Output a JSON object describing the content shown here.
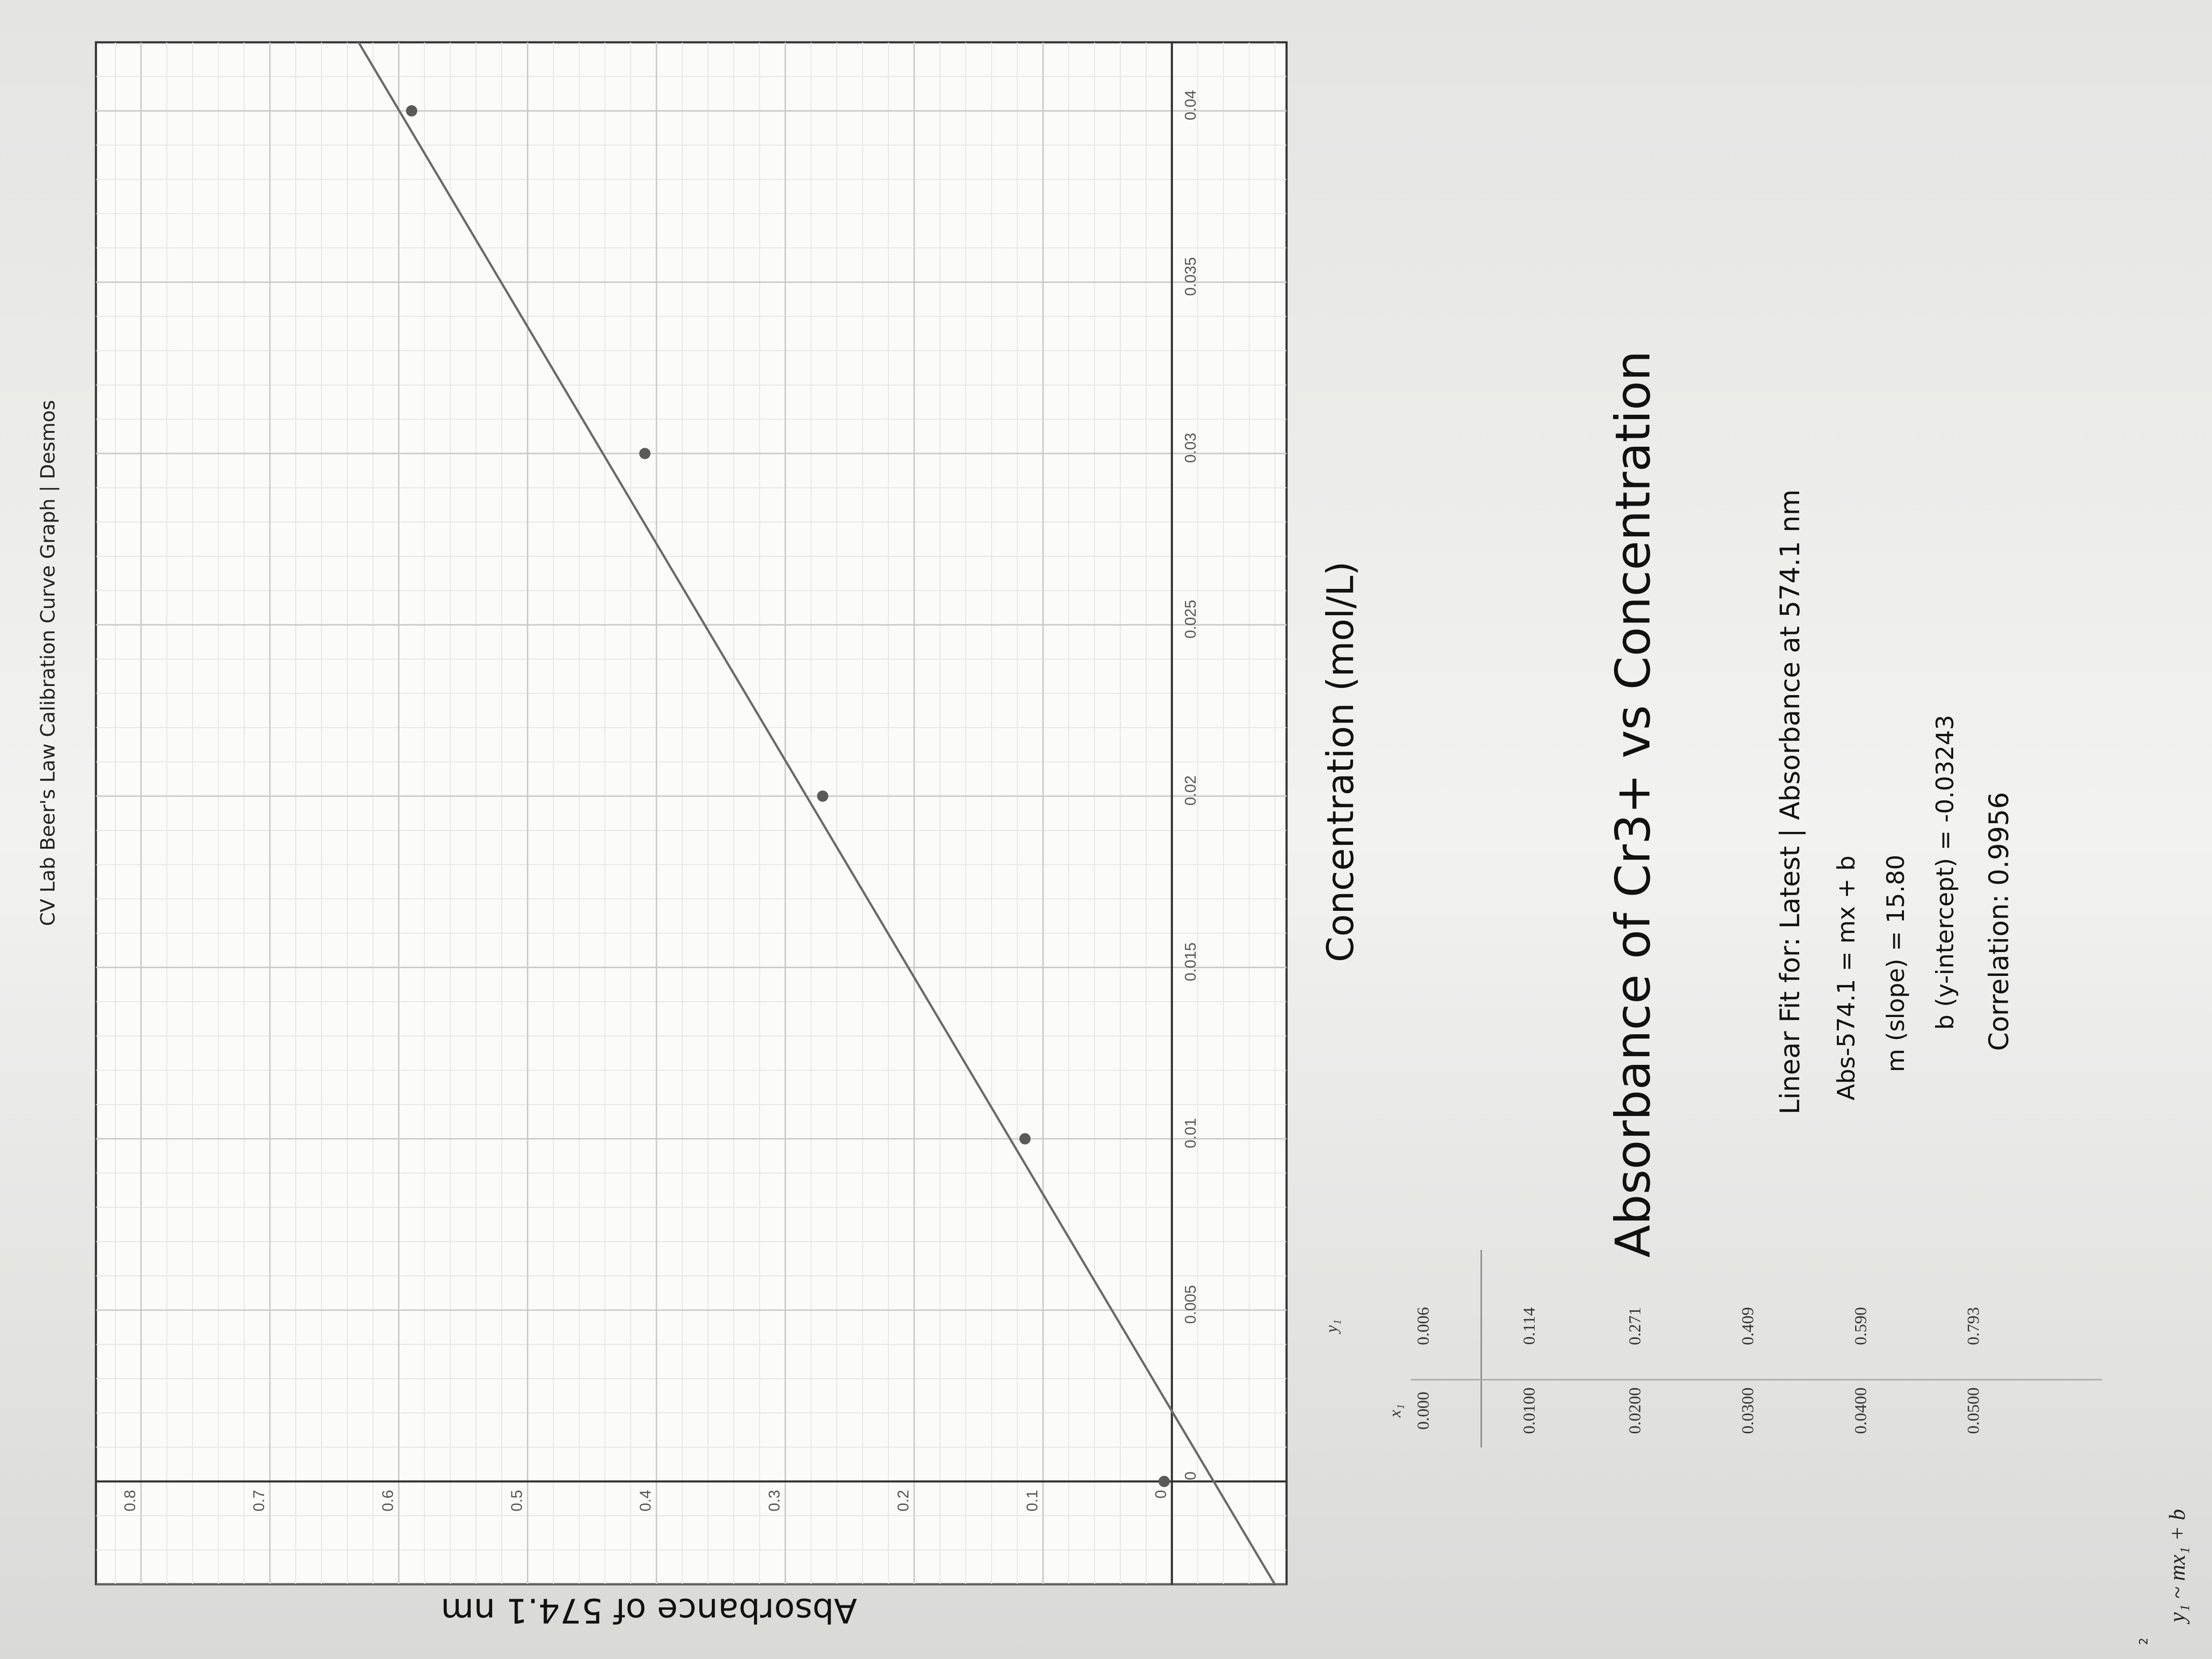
{
  "header": {
    "title": "CV Lab Beer's Law Calibration Curve Graph | Desmos"
  },
  "chart_data": {
    "type": "scatter",
    "title": "Absorbance of Cr3+ vs Concentration",
    "x_label": "Concentration (mol/L)",
    "y_label": "Absorbance of 574.1 nm",
    "x": [
      0,
      0.01,
      0.02,
      0.03,
      0.04
    ],
    "values": [
      0.006,
      0.114,
      0.271,
      0.409,
      0.59
    ],
    "color": "#5a5a5a",
    "fit": {
      "slope": 15.8,
      "intercept": -0.03243,
      "color": "#6a6a6a"
    },
    "xlim": [
      -0.003,
      0.042
    ],
    "ylim": [
      -0.089,
      0.835
    ],
    "xticks": [
      0,
      0.005,
      0.01,
      0.015,
      0.02,
      0.025,
      0.03,
      0.035,
      0.04
    ],
    "yticks": [
      0,
      0.1,
      0.2,
      0.3,
      0.4,
      0.5,
      0.6,
      0.7,
      0.8
    ],
    "grid": true
  },
  "notes": {
    "fit_title": "Linear Fit for: Latest | Absorbance at 574.1 nm",
    "equation": "Abs-574.1 = mx + b",
    "slope": "m (slope) = 15.80",
    "intercept": "b (y-intercept) = -0.03243",
    "correlation": "Correlation: 0.9956"
  },
  "table": {
    "headers": [
      "x₁",
      "y₁"
    ],
    "rows": [
      [
        "0.000",
        "0.006"
      ],
      [
        "0.0100",
        "0.114"
      ],
      [
        "0.0200",
        "0.271"
      ],
      [
        "0.0300",
        "0.409"
      ],
      [
        "0.0400",
        "0.590"
      ],
      [
        "0.0500",
        "0.793"
      ]
    ]
  },
  "regression": "y₁ ~ mx₁ + b"
}
